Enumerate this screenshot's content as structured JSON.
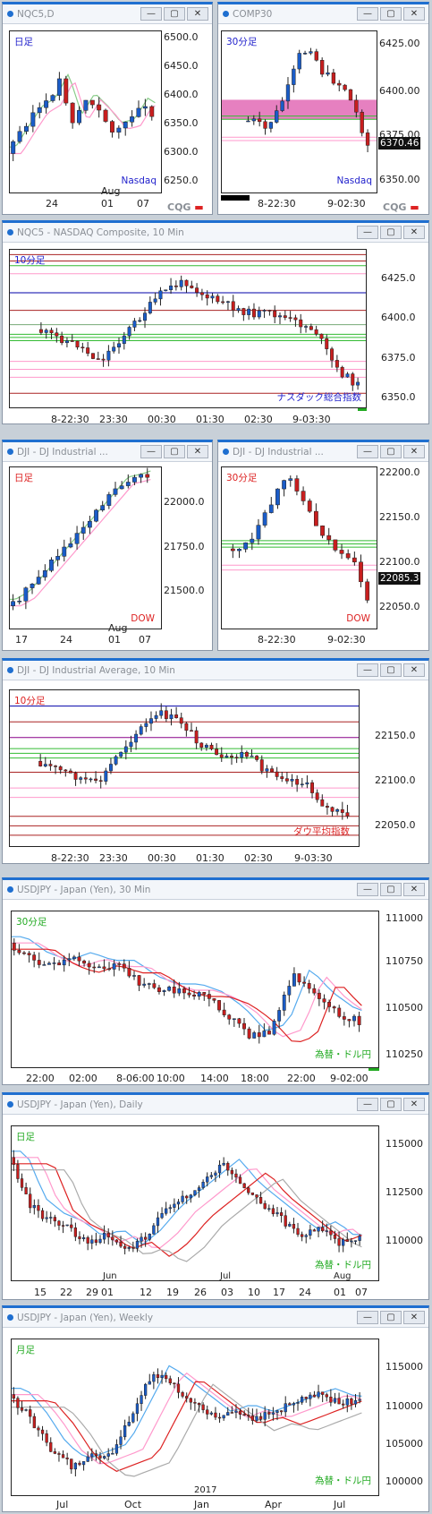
{
  "colors": {
    "up": "#1a5cc8",
    "down": "#c81e1e",
    "titlebar_accent": "#1f6fd0",
    "highlight": "#e060b0",
    "green_level": "#33bb33"
  },
  "cqg_logo": {
    "text": "CQG"
  },
  "windows": [
    {
      "title": "NQC5,D",
      "period_label": "日足",
      "label_color": "#2222cc",
      "instrument_label": "Nasdaq",
      "instrument_color": "#2222cc",
      "y_labels": [
        "6500.0",
        "6450.0",
        "6400.0",
        "6350.0",
        "6300.0",
        "6250.0"
      ],
      "y_range": [
        6225,
        6525
      ],
      "x_labels": [
        "24",
        "01",
        "07"
      ],
      "x_sub": [
        "Aug"
      ],
      "tooltip": ""
    },
    {
      "title": "COMP30",
      "period_label": "30分足",
      "label_color": "#2222cc",
      "instrument_label": "Nasdaq",
      "instrument_color": "#2222cc",
      "y_labels": [
        "6425.00",
        "6400.00",
        "6375.00",
        "6350.00"
      ],
      "y_range": [
        6340,
        6440
      ],
      "x_labels": [
        "8-22:30",
        "9-02:30"
      ],
      "x_sub": [],
      "tooltip": "6370.46"
    },
    {
      "title": "NQC5 - NASDAQ Composite, 10 Min",
      "period_label": "10分足",
      "label_color": "#2222cc",
      "instrument_label": "ナスダック総合指数",
      "instrument_color": "#2222cc",
      "y_labels": [
        "6425.0",
        "6400.0",
        "6375.0",
        "6350.0"
      ],
      "y_range": [
        6340,
        6445
      ],
      "x_labels": [
        "8-22:30",
        "23:30",
        "00:30",
        "01:30",
        "02:30",
        "9-03:30"
      ],
      "x_sub": [],
      "tooltip": ""
    },
    {
      "title": "DJI - DJ Industrial ...",
      "period_label": "日足",
      "label_color": "#dd2222",
      "instrument_label": "DOW",
      "instrument_color": "#dd2222",
      "y_labels": [
        "22000.0",
        "21750.0",
        "21500.0"
      ],
      "y_range": [
        21350,
        22350
      ],
      "x_labels": [
        "17",
        "24",
        "01",
        "07"
      ],
      "x_sub": [
        "Aug"
      ],
      "tooltip": ""
    },
    {
      "title": "DJI - DJ Industrial ...",
      "period_label": "30分足",
      "label_color": "#dd2222",
      "instrument_label": "DOW",
      "instrument_color": "#dd2222",
      "y_labels": [
        "22200.0",
        "22150.0",
        "22100.0",
        "22050.0"
      ],
      "y_range": [
        22030,
        22210
      ],
      "x_labels": [
        "8-22:30",
        "9-02:30"
      ],
      "x_sub": [],
      "tooltip": "22085.3"
    },
    {
      "title": "DJI - DJ Industrial Average, 10 Min",
      "period_label": "10分足",
      "label_color": "#dd2222",
      "instrument_label": "ダウ平均指数",
      "instrument_color": "#dd2222",
      "y_labels": [
        "22150.0",
        "22100.0",
        "22050.0"
      ],
      "y_range": [
        22030,
        22210
      ],
      "x_labels": [
        "8-22:30",
        "23:30",
        "00:30",
        "01:30",
        "02:30",
        "9-03:30"
      ],
      "x_sub": [],
      "tooltip": ""
    },
    {
      "title": "USDJPY - Japan (Yen), 30 Min",
      "period_label": "30分足",
      "label_color": "#22aa22",
      "instrument_label": "為替・ドル円",
      "instrument_color": "#22aa22",
      "y_labels": [
        "111000",
        "110750",
        "110500",
        "110250"
      ],
      "y_range": [
        110150,
        111050
      ],
      "x_labels": [
        "22:00",
        "02:00",
        "8-06:00",
        "10:00",
        "14:00",
        "18:00",
        "22:00",
        "9-02:00"
      ],
      "x_sub": [],
      "tooltip": ""
    },
    {
      "title": "USDJPY - Japan (Yen), Daily",
      "period_label": "日足",
      "label_color": "#22aa22",
      "instrument_label": "為替・ドル円",
      "instrument_color": "#22aa22",
      "y_labels": [
        "115000",
        "112500",
        "110000"
      ],
      "y_range": [
        108300,
        115800
      ],
      "x_labels": [
        "15",
        "22",
        "29",
        "01",
        "12",
        "19",
        "26",
        "03",
        "10",
        "17",
        "24",
        "01",
        "07"
      ],
      "x_sub": [
        "Jun",
        "Jul",
        "Aug"
      ],
      "tooltip": ""
    },
    {
      "title": "USDJPY - Japan (Yen), Weekly",
      "period_label": "月足",
      "label_color": "#22aa22",
      "instrument_label": "為替・ドル円",
      "instrument_color": "#22aa22",
      "y_labels": [
        "115000",
        "110000",
        "105000",
        "100000"
      ],
      "y_range": [
        98000,
        119000
      ],
      "x_labels": [
        "Jul",
        "Oct",
        "Jan",
        "Apr",
        "Jul"
      ],
      "x_sub": [
        "2017"
      ],
      "tooltip": ""
    }
  ]
}
